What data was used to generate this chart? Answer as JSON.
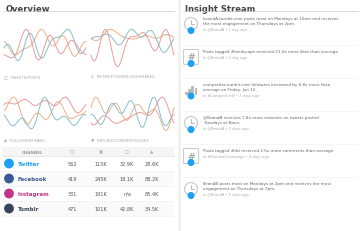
{
  "bg_color": "#f2f2ee",
  "left_panel_color": "#ffffff",
  "right_panel_color": "#ffffff",
  "title_left": "Overview",
  "title_right": "Insight Stream",
  "chart_colors": [
    "#e8a87c",
    "#7ab8c8",
    "#e89090",
    "#6dbdbd"
  ],
  "table": {
    "rows": [
      {
        "channel": "Twitter",
        "color": "#1da1f2",
        "vals": [
          "562",
          "115K",
          "32.9K",
          "28.6K"
        ]
      },
      {
        "channel": "Facebook",
        "color": "#3b5998",
        "vals": [
          "419",
          "245K",
          "18.1K",
          "88.2K"
        ]
      },
      {
        "channel": "Instagram",
        "color": "#c13584",
        "vals": [
          "331",
          "191K",
          "n/a",
          "85.4K"
        ]
      },
      {
        "channel": "Tumblr",
        "color": "#35465c",
        "vals": [
          "471",
          "101K",
          "42.8K",
          "34.5K"
        ]
      }
    ]
  },
  "chart_labels": [
    {
      "label": "TWEETS/POSTS",
      "icon": "□"
    },
    {
      "label": "RETWEETS/REBLOGS/SHARES",
      "icon": "↻"
    },
    {
      "label": "FOLLOWERS/FANS",
      "icon": "◆"
    },
    {
      "label": "REPLIES/COMMENTS/LIKES",
      "icon": "♥"
    }
  ],
  "insights": [
    {
      "icon": "clock",
      "lines": [
        "brandA.tumblr.com posts most on Mondays at 10am and receives",
        "the most engagement on Thursdays at 2pm."
      ],
      "sub": "in @BrandA • 1 day ago"
    },
    {
      "icon": "hash",
      "lines": [
        "Posts tagged #landscape received 21.2x more likes than average."
      ],
      "sub": "in @BrandA • 1 day ago"
    },
    {
      "icon": "bars",
      "lines": [
        "competitor.tumblr.com followers increased by 6.8x more than",
        "average on Friday, Jun 12."
      ],
      "sub": "in #Competitor B • 2 days ago"
    },
    {
      "icon": "clock",
      "lines": [
        "@BrandA receives 7.8x more retweets on tweets posted",
        "Tuesdays at Noon."
      ],
      "sub": "in @BrandA • 2 days ago"
    },
    {
      "icon": "hash",
      "lines": [
        "Posts tagged #tbt received 2.5x more comments than average."
      ],
      "sub": "in #SummerCampaign • 4 days ago"
    },
    {
      "icon": "clock",
      "lines": [
        "BrandB posts most on Mondays at 2pm and receives the most",
        "engagement on Thursdays at 7pm."
      ],
      "sub": "in @BrandB • 5 days ago"
    }
  ]
}
